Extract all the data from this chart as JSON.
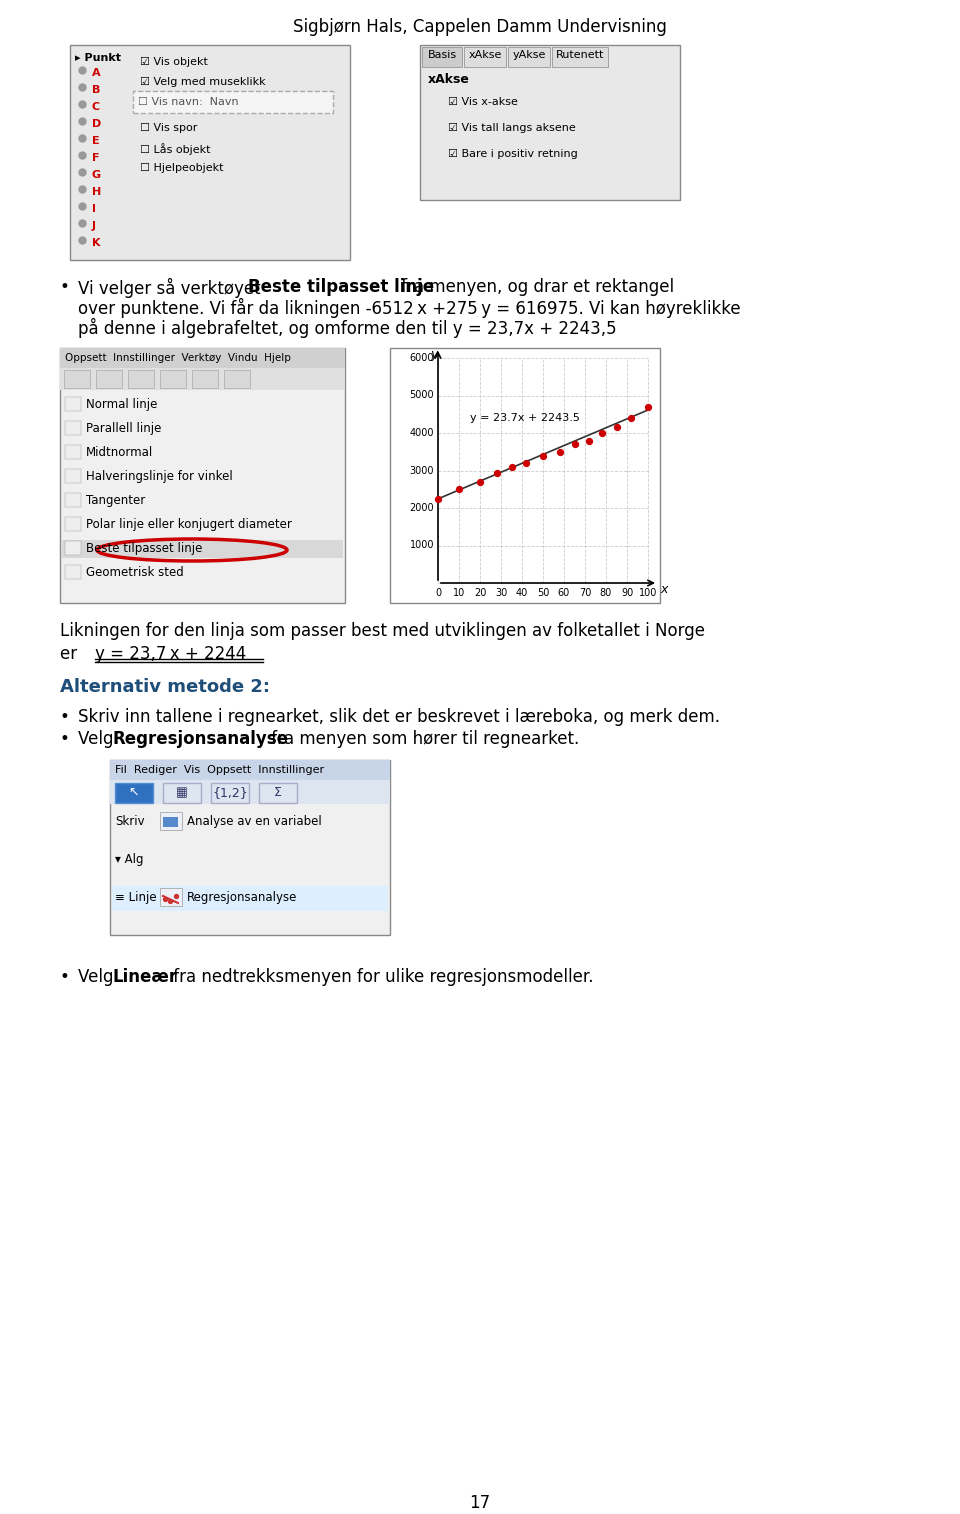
{
  "page_width": 9.6,
  "page_height": 15.14,
  "dpi": 100,
  "background_color": "#ffffff",
  "header_text": "Sigbjørn Hals, Cappelen Damm Undervisning",
  "header_fontsize": 12,
  "header_color": "#000000",
  "footer_text": "17",
  "footer_fontsize": 12,
  "body_text_fontsize": 12,
  "body_text_color": "#000000",
  "alt_header_color": "#1f4e79",
  "bullet1_text": "Vi velger så verktøyet ",
  "bullet1_bold": "Beste tilpasset linje",
  "bullet1_rest": " fra menyen, og drar et rektangel\nover punktene. Vi får da likningen -6512 x +275 y = 616975. Vi kan høyreklikke\npå denne i algebrafeltet, og omforme den til y = 23,7 x + 2243,5",
  "conclusion_line1": "Likningen for den linja som passer best med utviklingen av folketallet i Norge",
  "conclusion_line2_pre": "er  ",
  "conclusion_line2_eq": "y = 23,7 x + 2244",
  "alt_header": "Alternativ metode 2:",
  "alt_bullet1": "Skriv inn tallene i regnearket, slik det er beskrevet i læreboka, og merk dem.",
  "alt_bullet2_pre": "Velg ",
  "alt_bullet2_bold": "Regresjonsanalyse",
  "alt_bullet2_rest": " fra menyen som hører til regnearket.",
  "final_bullet_pre": "Velg ",
  "final_bullet_bold": "Lineær",
  "final_bullet_rest": " fra nedtrekksmenyen for ulike regresjonsmodeller."
}
